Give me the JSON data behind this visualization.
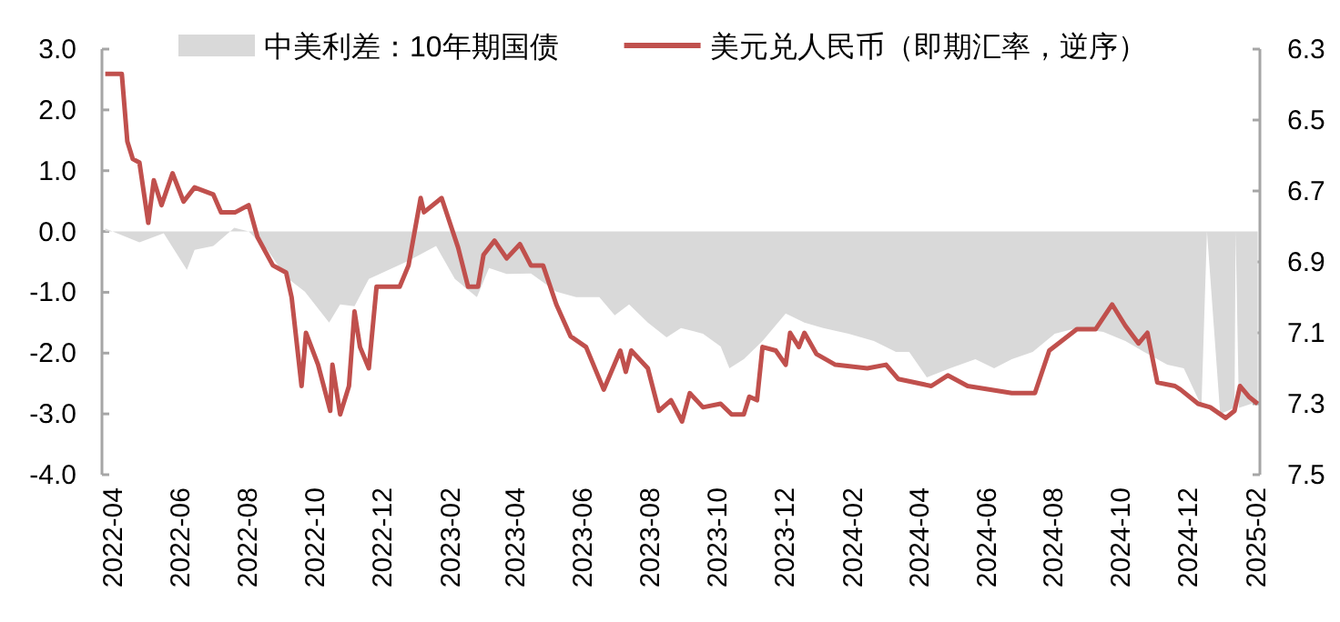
{
  "chart_data": {
    "type": "area",
    "legend": "top",
    "xlim": [
      "2022-03-22",
      "2025-02-04"
    ],
    "xticks": [
      "2022-04",
      "2022-06",
      "2022-08",
      "2022-10",
      "2022-12",
      "2023-02",
      "2023-04",
      "2023-06",
      "2023-08",
      "2023-10",
      "2023-12",
      "2024-02",
      "2024-04",
      "2024-06",
      "2024-08",
      "2024-10",
      "2024-12",
      "2025-02"
    ],
    "ylim": [
      -4,
      3
    ],
    "yticks": [
      {
        "value": -4,
        "label": "-4.0"
      },
      {
        "value": -3,
        "label": "-3.0"
      },
      {
        "value": -2,
        "label": "-2.0"
      },
      {
        "value": -1,
        "label": "-1.0"
      },
      {
        "value": 0,
        "label": "0.0"
      },
      {
        "value": 1,
        "label": "1.0"
      },
      {
        "value": 2,
        "label": "2.0"
      },
      {
        "value": 3,
        "label": "3.0"
      }
    ],
    "y2lim": [
      7.5,
      6.3
    ],
    "y2ticks": [
      7.5,
      7.3,
      7.1,
      6.9,
      6.7,
      6.5,
      6.3
    ],
    "series": [
      {
        "name": "中美利差：10年期国债",
        "type": "area",
        "color": "#d9d9d9",
        "x": [
          "2022-03-25",
          "2022-04-25",
          "2022-05-17",
          "2022-06-07",
          "2022-06-14",
          "2022-07-01",
          "2022-07-20",
          "2022-08-02",
          "2022-08-19",
          "2022-09-05",
          "2022-09-22",
          "2022-10-14",
          "2022-10-24",
          "2022-11-06",
          "2022-11-19",
          "2022-12-07",
          "2022-12-25",
          "2023-01-19",
          "2023-02-05",
          "2023-02-25",
          "2023-03-08",
          "2023-03-24",
          "2023-04-15",
          "2023-05-08",
          "2023-05-26",
          "2023-06-16",
          "2023-06-30",
          "2023-07-13",
          "2023-07-30",
          "2023-08-16",
          "2023-08-29",
          "2023-09-18",
          "2023-10-04",
          "2023-10-12",
          "2023-10-25",
          "2023-11-11",
          "2023-12-02",
          "2023-12-19",
          "2024-01-05",
          "2024-01-28",
          "2024-02-20",
          "2024-03-11",
          "2024-03-23",
          "2024-04-08",
          "2024-04-29",
          "2024-05-22",
          "2024-06-08",
          "2024-06-24",
          "2024-07-13",
          "2024-08-02",
          "2024-08-22",
          "2024-09-15",
          "2024-10-05",
          "2024-10-22",
          "2024-11-12",
          "2024-11-27",
          "2024-12-13",
          "2024-12-18",
          "2024-12-30",
          "2025-01-12",
          "2025-01-13",
          "2025-01-16",
          "2025-02-02"
        ],
        "values": [
          0.05,
          -0.18,
          -0.03,
          -0.63,
          -0.3,
          -0.24,
          0.06,
          0,
          -0.3,
          -0.75,
          -0.99,
          -1.5,
          -1.2,
          -1.23,
          -0.78,
          -0.63,
          -0.48,
          -0.24,
          -0.78,
          -1.08,
          -0.6,
          -0.7,
          -0.69,
          -0.99,
          -1.08,
          -1.08,
          -1.38,
          -1.2,
          -1.5,
          -1.74,
          -1.59,
          -1.68,
          -1.89,
          -2.25,
          -2.1,
          -1.8,
          -1.35,
          -1.5,
          -1.59,
          -1.68,
          -1.8,
          -1.98,
          -1.98,
          -2.4,
          -2.25,
          -2.1,
          -2.25,
          -2.1,
          -1.98,
          -1.68,
          -1.59,
          -1.65,
          -1.8,
          -1.98,
          -2.19,
          -2.25,
          -2.87,
          0,
          -3.0,
          -2.9,
          0,
          -2.9,
          -2.8
        ]
      },
      {
        "name": "美元兑人民币（即期汇率，逆序）",
        "type": "line",
        "axis": "y2",
        "color": "#c0504d",
        "x": [
          "2022-03-25",
          "2022-04-09",
          "2022-04-14",
          "2022-04-19",
          "2022-04-25",
          "2022-05-03",
          "2022-05-08",
          "2022-05-15",
          "2022-05-25",
          "2022-06-04",
          "2022-06-14",
          "2022-07-01",
          "2022-07-08",
          "2022-07-21",
          "2022-08-02",
          "2022-08-10",
          "2022-08-24",
          "2022-09-05",
          "2022-09-10",
          "2022-09-19",
          "2022-09-23",
          "2022-10-04",
          "2022-10-15",
          "2022-10-17",
          "2022-10-24",
          "2022-11-01",
          "2022-11-06",
          "2022-11-11",
          "2022-11-19",
          "2022-11-26",
          "2022-12-17",
          "2022-12-25",
          "2023-01-05",
          "2023-01-08",
          "2023-01-24",
          "2023-02-08",
          "2023-02-17",
          "2023-02-26",
          "2023-03-03",
          "2023-03-13",
          "2023-03-24",
          "2023-04-05",
          "2023-04-15",
          "2023-04-26",
          "2023-05-08",
          "2023-05-21",
          "2023-06-04",
          "2023-06-20",
          "2023-07-05",
          "2023-07-10",
          "2023-07-15",
          "2023-07-30",
          "2023-08-09",
          "2023-08-20",
          "2023-08-30",
          "2023-09-06",
          "2023-09-18",
          "2023-10-04",
          "2023-10-14",
          "2023-10-25",
          "2023-10-30",
          "2023-11-06",
          "2023-11-11",
          "2023-11-23",
          "2023-12-02",
          "2023-12-06",
          "2023-12-14",
          "2023-12-19",
          "2023-12-30",
          "2024-01-16",
          "2024-02-14",
          "2024-03-02",
          "2024-03-13",
          "2024-04-12",
          "2024-04-27",
          "2024-05-15",
          "2024-06-24",
          "2024-07-15",
          "2024-07-28",
          "2024-08-22",
          "2024-09-08",
          "2024-09-23",
          "2024-10-05",
          "2024-10-17",
          "2024-10-25",
          "2024-11-03",
          "2024-11-19",
          "2024-11-24",
          "2024-12-10",
          "2024-12-21",
          "2025-01-04",
          "2025-01-12",
          "2025-01-17",
          "2025-01-25",
          "2025-02-02"
        ],
        "values": [
          6.37,
          6.37,
          6.56,
          6.61,
          6.62,
          6.79,
          6.67,
          6.74,
          6.65,
          6.73,
          6.69,
          6.71,
          6.76,
          6.76,
          6.74,
          6.83,
          6.91,
          6.93,
          7.0,
          7.25,
          7.1,
          7.19,
          7.32,
          7.19,
          7.33,
          7.25,
          7.04,
          7.14,
          7.2,
          6.97,
          6.97,
          6.91,
          6.72,
          6.76,
          6.72,
          6.86,
          6.97,
          6.97,
          6.88,
          6.84,
          6.89,
          6.85,
          6.91,
          6.91,
          7.02,
          7.11,
          7.14,
          7.26,
          7.15,
          7.21,
          7.15,
          7.2,
          7.32,
          7.29,
          7.35,
          7.27,
          7.31,
          7.3,
          7.33,
          7.33,
          7.28,
          7.29,
          7.14,
          7.15,
          7.19,
          7.1,
          7.14,
          7.1,
          7.16,
          7.19,
          7.2,
          7.19,
          7.23,
          7.25,
          7.22,
          7.25,
          7.27,
          7.27,
          7.15,
          7.09,
          7.09,
          7.02,
          7.08,
          7.13,
          7.1,
          7.24,
          7.25,
          7.26,
          7.3,
          7.31,
          7.34,
          7.32,
          7.25,
          7.28,
          7.3
        ]
      }
    ]
  }
}
